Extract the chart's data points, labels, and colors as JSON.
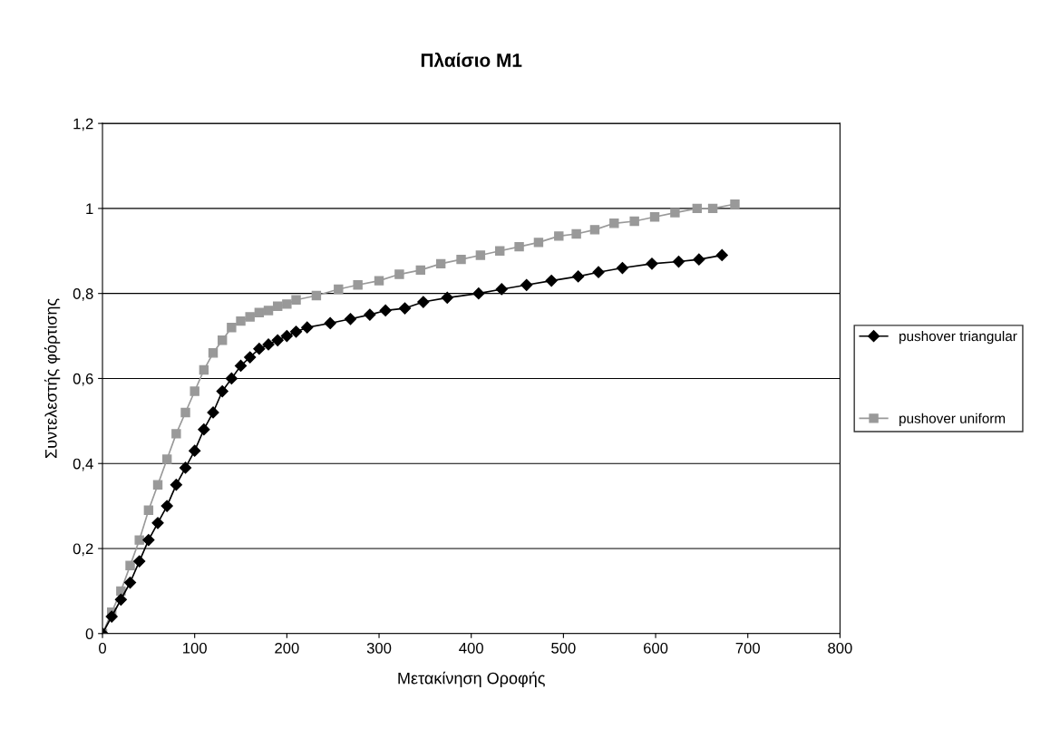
{
  "chart_data": {
    "type": "line",
    "title": "Πλαίσιο Μ1",
    "xlabel": "Μετακίνηση Οροφής",
    "ylabel": "Συντελεστής φόρτισης",
    "xlim": [
      0,
      800
    ],
    "xticks": [
      0,
      100,
      200,
      300,
      400,
      500,
      600,
      700,
      800
    ],
    "ylim": [
      0,
      1.2
    ],
    "yticks": [
      {
        "value": 0,
        "label": "0"
      },
      {
        "value": 0.2,
        "label": "0,2"
      },
      {
        "value": 0.4,
        "label": "0,4"
      },
      {
        "value": 0.6,
        "label": "0,6"
      },
      {
        "value": 0.8,
        "label": "0,8"
      },
      {
        "value": 1,
        "label": "1"
      },
      {
        "value": 1.2,
        "label": "1,2"
      }
    ],
    "grid": "y",
    "legend": "right",
    "line_style": "solid",
    "series": [
      {
        "name": "pushover triangular",
        "color": "#000000",
        "marker": "diamond",
        "x": [
          0,
          10,
          20,
          30,
          40,
          50,
          60,
          70,
          80,
          90,
          100,
          110,
          120,
          130,
          140,
          150,
          160,
          170,
          180,
          190,
          200,
          210,
          222,
          247,
          269,
          290,
          307,
          328,
          348,
          374,
          408,
          433,
          460,
          487,
          516,
          538,
          564,
          596,
          625,
          647,
          672
        ],
        "values": [
          0,
          0.04,
          0.08,
          0.12,
          0.17,
          0.22,
          0.26,
          0.3,
          0.35,
          0.39,
          0.43,
          0.48,
          0.52,
          0.57,
          0.6,
          0.63,
          0.65,
          0.67,
          0.68,
          0.69,
          0.7,
          0.71,
          0.72,
          0.73,
          0.74,
          0.75,
          0.76,
          0.765,
          0.78,
          0.79,
          0.8,
          0.81,
          0.82,
          0.83,
          0.84,
          0.85,
          0.86,
          0.87,
          0.875,
          0.88,
          0.89
        ]
      },
      {
        "name": "pushover uniform",
        "color": "#999999",
        "marker": "square",
        "x": [
          0,
          10,
          20,
          30,
          40,
          50,
          60,
          70,
          80,
          90,
          100,
          110,
          120,
          130,
          140,
          150,
          160,
          170,
          180,
          190,
          200,
          210,
          232,
          256,
          277,
          300,
          322,
          345,
          367,
          389,
          410,
          431,
          452,
          473,
          495,
          514,
          534,
          555,
          577,
          599,
          621,
          645,
          662,
          686
        ],
        "values": [
          0,
          0.05,
          0.1,
          0.16,
          0.22,
          0.29,
          0.35,
          0.41,
          0.47,
          0.52,
          0.57,
          0.62,
          0.66,
          0.69,
          0.72,
          0.735,
          0.745,
          0.755,
          0.76,
          0.77,
          0.775,
          0.785,
          0.795,
          0.81,
          0.82,
          0.83,
          0.845,
          0.855,
          0.87,
          0.88,
          0.89,
          0.9,
          0.91,
          0.92,
          0.935,
          0.94,
          0.95,
          0.965,
          0.97,
          0.98,
          0.99,
          1.0,
          1.0,
          1.01
        ]
      }
    ]
  }
}
